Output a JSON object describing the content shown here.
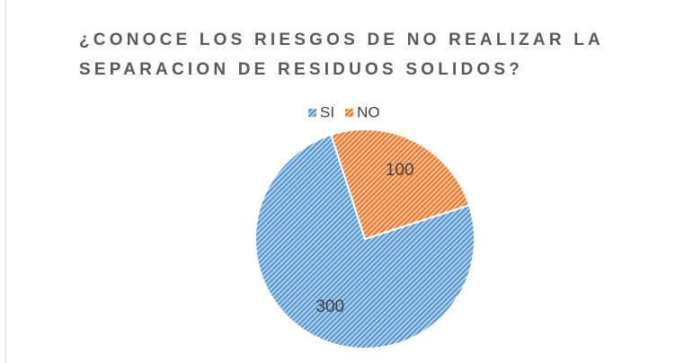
{
  "chart_data": {
    "type": "pie",
    "title": "¿CONOCE LOS RIESGOS DE NO REALIZAR LA SEPARACION DE RESIDUOS SOLIDOS?",
    "categories": [
      "SI",
      "NO"
    ],
    "values": [
      300,
      100
    ],
    "colors": [
      "#5b9bd5",
      "#ed7d31"
    ],
    "legend": "top"
  }
}
